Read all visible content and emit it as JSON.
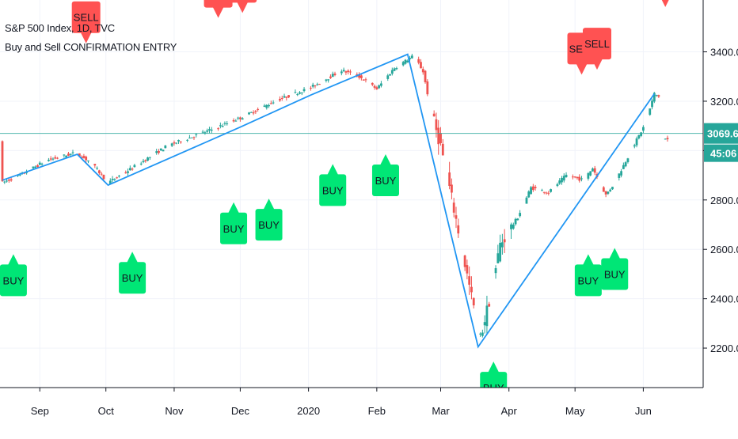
{
  "chart_data": {
    "type": "candlestick",
    "title": "S&P 500 Index, 1D, TVC",
    "indicator": "Buy and Sell CONFIRMATION ENTRY",
    "ylim": [
      2040,
      3610
    ],
    "y_ticks": [
      2200,
      2400,
      2600,
      2800,
      3000,
      3200,
      3400
    ],
    "y_tick_labels": [
      "2200.0",
      "2400.0",
      "2600.0",
      "2800.0",
      "3000.0",
      "3200.0",
      "3400.0"
    ],
    "x_range_days": [
      0,
      302
    ],
    "x_tick_labels": [
      {
        "label": "Sep",
        "day": 17
      },
      {
        "label": "Oct",
        "day": 47
      },
      {
        "label": "Nov",
        "day": 78
      },
      {
        "label": "Dec",
        "day": 108
      },
      {
        "label": "2020",
        "day": 139
      },
      {
        "label": "Feb",
        "day": 170
      },
      {
        "label": "Mar",
        "day": 199
      },
      {
        "label": "Apr",
        "day": 230
      },
      {
        "label": "May",
        "day": 260
      },
      {
        "label": "Jun",
        "day": 291
      }
    ],
    "price_label": "3069.6",
    "timer_label": "45:06",
    "current_price": 3069.6,
    "up_color": "#26a69a",
    "down_color": "#ef5350",
    "buy_color": "#00e676",
    "sell_color": "#ff5252",
    "line_color": "#2196f3",
    "grid": true,
    "trend_line": [
      {
        "day": 0,
        "price": 2880
      },
      {
        "day": 34,
        "price": 2985
      },
      {
        "day": 48,
        "price": 2860
      },
      {
        "day": 108,
        "price": 3095
      },
      {
        "day": 140,
        "price": 3225
      },
      {
        "day": 184,
        "price": 3390
      },
      {
        "day": 216,
        "price": 2205
      },
      {
        "day": 296,
        "price": 3230
      }
    ],
    "signals": [
      {
        "type": "BUY",
        "label": "BUY",
        "day": 5,
        "price": 2590
      },
      {
        "type": "BUY",
        "label": "BUY",
        "day": 59,
        "price": 2600
      },
      {
        "type": "BUY",
        "label": "BUY",
        "day": 105,
        "price": 2800
      },
      {
        "type": "BUY",
        "label": "BUY",
        "day": 121,
        "price": 2815
      },
      {
        "type": "BUY",
        "label": "BUY",
        "day": 150,
        "price": 2955
      },
      {
        "type": "BUY",
        "label": "BUY",
        "day": 174,
        "price": 2995
      },
      {
        "type": "BUY",
        "label": "BUY",
        "day": 223,
        "price": 2155
      },
      {
        "type": "BUY",
        "label": "BUY",
        "day": 266,
        "price": 2590
      },
      {
        "type": "BUY",
        "label": "BUY",
        "day": 278,
        "price": 2615
      },
      {
        "type": "SELL",
        "label": "SELL",
        "day": 38,
        "price": 3425
      },
      {
        "type": "SELL",
        "label": "SELL",
        "day": 98,
        "price": 3528
      },
      {
        "type": "SELL",
        "label": "SELL",
        "day": 109,
        "price": 3548
      },
      {
        "type": "SELL",
        "label": "SELL",
        "day": 140,
        "price": 3620
      },
      {
        "type": "SELL",
        "label": "SELL",
        "day": 263,
        "price": 3298
      },
      {
        "type": "SELL",
        "label": "SELL",
        "day": 270,
        "price": 3318
      },
      {
        "type": "SELL",
        "label": "SELL",
        "day": 301,
        "price": 3572
      }
    ],
    "path_knots": [
      [
        0,
        2870
      ],
      [
        8,
        2900
      ],
      [
        20,
        2960
      ],
      [
        33,
        2990
      ],
      [
        40,
        2955
      ],
      [
        48,
        2870
      ],
      [
        60,
        2935
      ],
      [
        75,
        3020
      ],
      [
        95,
        3085
      ],
      [
        110,
        3140
      ],
      [
        125,
        3205
      ],
      [
        140,
        3255
      ],
      [
        154,
        3325
      ],
      [
        162,
        3300
      ],
      [
        170,
        3250
      ],
      [
        178,
        3335
      ],
      [
        187,
        3385
      ],
      [
        191,
        3320
      ],
      [
        195,
        3145
      ],
      [
        199,
        3020
      ],
      [
        206,
        2720
      ],
      [
        212,
        2450
      ],
      [
        217,
        2240
      ],
      [
        222,
        2430
      ],
      [
        226,
        2620
      ],
      [
        234,
        2730
      ],
      [
        240,
        2850
      ],
      [
        248,
        2830
      ],
      [
        256,
        2900
      ],
      [
        264,
        2880
      ],
      [
        268,
        2930
      ],
      [
        274,
        2820
      ],
      [
        278,
        2870
      ],
      [
        286,
        3010
      ],
      [
        292,
        3110
      ],
      [
        296,
        3230
      ],
      [
        299,
        3215
      ],
      [
        300,
        3050
      ],
      [
        302,
        3045
      ]
    ]
  }
}
